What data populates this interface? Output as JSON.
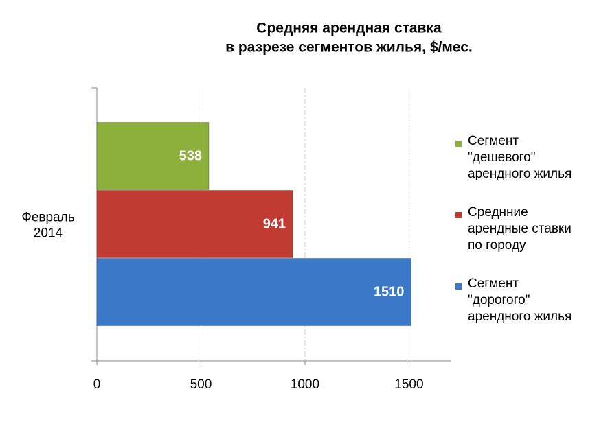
{
  "chart_data": {
    "type": "hbar",
    "title": [
      "Средняя арендная ставка",
      "в разрезе сегментов жилья, $/мес."
    ],
    "categories": [
      "Февраль 2014"
    ],
    "series": [
      {
        "name": "Сегмент \"дешевого\" арендного жилья",
        "color": "#8db03c",
        "values": [
          538
        ]
      },
      {
        "name": "Среднние арендные ставки по городу",
        "color": "#c23b33",
        "values": [
          941
        ]
      },
      {
        "name": "Сегмент \"дорогого\" арендного жилья",
        "color": "#3b78c8",
        "values": [
          1510
        ]
      }
    ],
    "xlim": [
      0,
      1700
    ],
    "xticks": [
      0,
      500,
      1000,
      1500
    ],
    "grid": true,
    "legend": "right"
  }
}
